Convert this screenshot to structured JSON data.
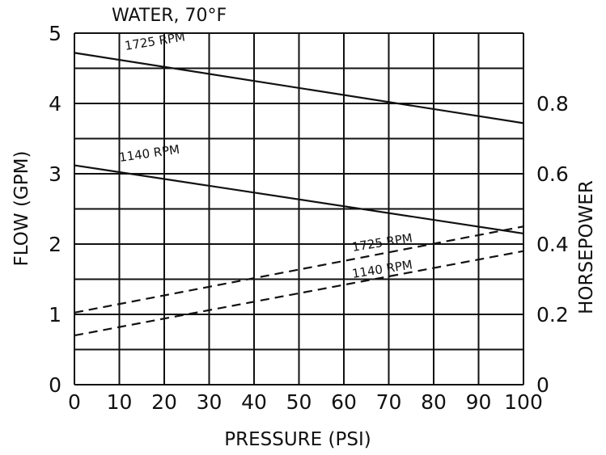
{
  "chart_data": {
    "type": "line",
    "title": "WATER, 70°F",
    "xlabel": "PRESSURE (PSI)",
    "ylabel": "FLOW (GPM)",
    "y2label": "HORSEPOWER",
    "xlim": [
      0,
      100
    ],
    "ylim": [
      0,
      5
    ],
    "y2lim": [
      0,
      1.0
    ],
    "grid": true,
    "x_ticks": [
      0,
      10,
      20,
      30,
      40,
      50,
      60,
      70,
      80,
      90,
      100
    ],
    "y_ticks": [
      0,
      1,
      2,
      3,
      4,
      5
    ],
    "y2_ticks": [
      "0",
      "0.2",
      "0.4",
      "0.6",
      "0.8"
    ],
    "y2_tick_values": [
      0,
      0.2,
      0.4,
      0.6,
      0.8
    ],
    "series": [
      {
        "name": "1725 RPM",
        "axis": "flow",
        "style": "solid",
        "x": [
          0,
          100
        ],
        "y": [
          4.72,
          3.72
        ]
      },
      {
        "name": "1140 RPM",
        "axis": "flow",
        "style": "solid",
        "x": [
          0,
          100
        ],
        "y": [
          3.12,
          2.15
        ]
      },
      {
        "name": "1725 RPM",
        "axis": "horsepower",
        "style": "dashed",
        "x": [
          0,
          100
        ],
        "y": [
          0.205,
          0.45
        ]
      },
      {
        "name": "1140 RPM",
        "axis": "horsepower",
        "style": "dashed",
        "x": [
          0,
          100
        ],
        "y": [
          0.14,
          0.38
        ]
      }
    ],
    "line_color": "#111111",
    "grid_color": "#111111"
  }
}
